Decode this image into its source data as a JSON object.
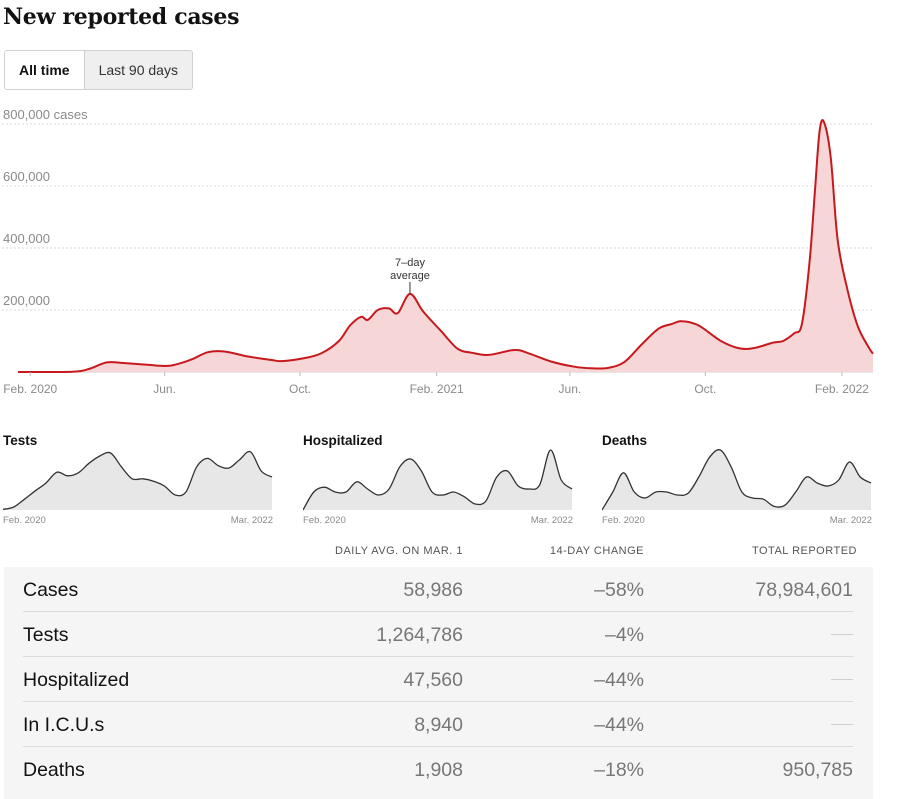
{
  "title": "New reported cases",
  "toggle": {
    "all_time": "All time",
    "last_90": "Last 90 days"
  },
  "annotation": {
    "line1": "7–day",
    "line2": "average"
  },
  "colors": {
    "line": "#c7191d",
    "fill": "#f6d6d6",
    "mini_line": "#333333",
    "mini_fill": "#e7e7e7",
    "grid": "#d9d9d9",
    "axis_text": "#8a8a8a"
  },
  "chart_data": [
    {
      "type": "area",
      "title": "New reported cases",
      "x_ticks": [
        "Feb. 2020",
        "Jun.",
        "Oct.",
        "Feb. 2021",
        "Jun.",
        "Oct.",
        "Feb. 2022"
      ],
      "y_ticks": [
        "800,000 cases",
        "600,000",
        "400,000",
        "200,000"
      ],
      "ylim": [
        0,
        800000
      ],
      "grid": true,
      "annotation": "7–day average",
      "series": [
        {
          "x": [
            "2020-01-21",
            "2020-03-10",
            "2020-03-25",
            "2020-04-10",
            "2020-04-25",
            "2020-05-15",
            "2020-06-05",
            "2020-06-25",
            "2020-07-10",
            "2020-07-25",
            "2020-08-15",
            "2020-09-05",
            "2020-09-15",
            "2020-10-05",
            "2020-10-20",
            "2020-11-05",
            "2020-11-15",
            "2020-11-25",
            "2020-12-01",
            "2020-12-10",
            "2020-12-20",
            "2020-12-28",
            "2021-01-08",
            "2021-01-20",
            "2021-02-05",
            "2021-02-20",
            "2021-03-05",
            "2021-03-20",
            "2021-04-12",
            "2021-04-25",
            "2021-05-15",
            "2021-06-05",
            "2021-06-20",
            "2021-07-05",
            "2021-07-20",
            "2021-08-05",
            "2021-08-20",
            "2021-09-01",
            "2021-09-10",
            "2021-09-25",
            "2021-10-15",
            "2021-11-01",
            "2021-11-15",
            "2021-12-01",
            "2021-12-10",
            "2021-12-20",
            "2021-12-27",
            "2022-01-03",
            "2022-01-08",
            "2022-01-12",
            "2022-01-16",
            "2022-01-22",
            "2022-01-28",
            "2022-02-05",
            "2022-02-15",
            "2022-02-25",
            "2022-03-01"
          ],
          "values": [
            0,
            1000,
            10000,
            31000,
            29000,
            24000,
            20000,
            40000,
            64000,
            66000,
            50000,
            39000,
            35000,
            45000,
            60000,
            100000,
            150000,
            178000,
            168000,
            200000,
            205000,
            190000,
            252000,
            195000,
            132000,
            75000,
            62000,
            55000,
            71000,
            60000,
            34000,
            17000,
            12000,
            13000,
            32000,
            90000,
            140000,
            155000,
            164000,
            150000,
            100000,
            76000,
            78000,
            95000,
            100000,
            125000,
            155000,
            360000,
            600000,
            780000,
            805000,
            690000,
            430000,
            280000,
            150000,
            80000,
            58986
          ]
        }
      ]
    },
    {
      "type": "area",
      "title": "Tests",
      "x_ticks": [
        "Feb. 2020",
        "Mar. 2022"
      ],
      "series": [
        {
          "x": [
            "2020-02",
            "2020-03",
            "2020-04",
            "2020-05",
            "2020-06",
            "2020-07",
            "2020-08",
            "2020-09",
            "2020-10",
            "2020-11",
            "2020-12",
            "2021-01",
            "2021-02",
            "2021-03",
            "2021-04",
            "2021-05",
            "2021-06",
            "2021-07",
            "2021-08",
            "2021-09",
            "2021-10",
            "2021-11",
            "2021-12",
            "2022-01",
            "2022-02",
            "2022-03"
          ],
          "values": [
            0.01,
            0.05,
            0.18,
            0.32,
            0.45,
            0.63,
            0.57,
            0.62,
            0.78,
            0.9,
            0.95,
            0.72,
            0.52,
            0.52,
            0.48,
            0.4,
            0.25,
            0.3,
            0.72,
            0.86,
            0.74,
            0.7,
            0.84,
            0.97,
            0.65,
            0.55
          ]
        }
      ]
    },
    {
      "type": "area",
      "title": "Hospitalized",
      "x_ticks": [
        "Feb. 2020",
        "Mar. 2022"
      ],
      "series": [
        {
          "x": [
            "2020-02",
            "2020-03",
            "2020-04",
            "2020-05",
            "2020-06",
            "2020-07",
            "2020-08",
            "2020-09",
            "2020-10",
            "2020-11",
            "2020-12",
            "2021-01",
            "2021-02",
            "2021-03",
            "2021-04",
            "2021-05",
            "2021-06",
            "2021-07",
            "2021-08",
            "2021-09",
            "2021-10",
            "2021-11",
            "2021-12",
            "2022-01",
            "2022-02",
            "2022-03"
          ],
          "values": [
            0,
            0.3,
            0.38,
            0.3,
            0.3,
            0.47,
            0.35,
            0.25,
            0.35,
            0.72,
            0.85,
            0.65,
            0.3,
            0.25,
            0.3,
            0.22,
            0.1,
            0.15,
            0.55,
            0.65,
            0.4,
            0.35,
            0.42,
            1.0,
            0.5,
            0.35
          ]
        }
      ]
    },
    {
      "type": "area",
      "title": "Deaths",
      "x_ticks": [
        "Feb. 2020",
        "Mar. 2022"
      ],
      "series": [
        {
          "x": [
            "2020-02",
            "2020-03",
            "2020-04",
            "2020-05",
            "2020-06",
            "2020-07",
            "2020-08",
            "2020-09",
            "2020-10",
            "2020-11",
            "2020-12",
            "2021-01",
            "2021-02",
            "2021-03",
            "2021-04",
            "2021-05",
            "2021-06",
            "2021-07",
            "2021-08",
            "2021-09",
            "2021-10",
            "2021-11",
            "2021-12",
            "2022-01",
            "2022-02",
            "2022-03"
          ],
          "values": [
            0,
            0.3,
            0.62,
            0.3,
            0.2,
            0.3,
            0.3,
            0.25,
            0.28,
            0.55,
            0.88,
            1.0,
            0.72,
            0.3,
            0.2,
            0.18,
            0.06,
            0.08,
            0.3,
            0.55,
            0.45,
            0.4,
            0.5,
            0.8,
            0.55,
            0.45
          ]
        }
      ]
    }
  ],
  "table": {
    "columns": [
      "DAILY AVG. ON MAR. 1",
      "14-DAY CHANGE",
      "TOTAL REPORTED"
    ],
    "rows": [
      {
        "name": "Cases",
        "avg": "58,986",
        "change": "–58%",
        "total": "78,984,601"
      },
      {
        "name": "Tests",
        "avg": "1,264,786",
        "change": "–4%",
        "total": ""
      },
      {
        "name": "Hospitalized",
        "avg": "47,560",
        "change": "–44%",
        "total": ""
      },
      {
        "name": "In I.C.U.s",
        "avg": "8,940",
        "change": "–44%",
        "total": ""
      },
      {
        "name": "Deaths",
        "avg": "1,908",
        "change": "–18%",
        "total": "950,785"
      }
    ]
  }
}
